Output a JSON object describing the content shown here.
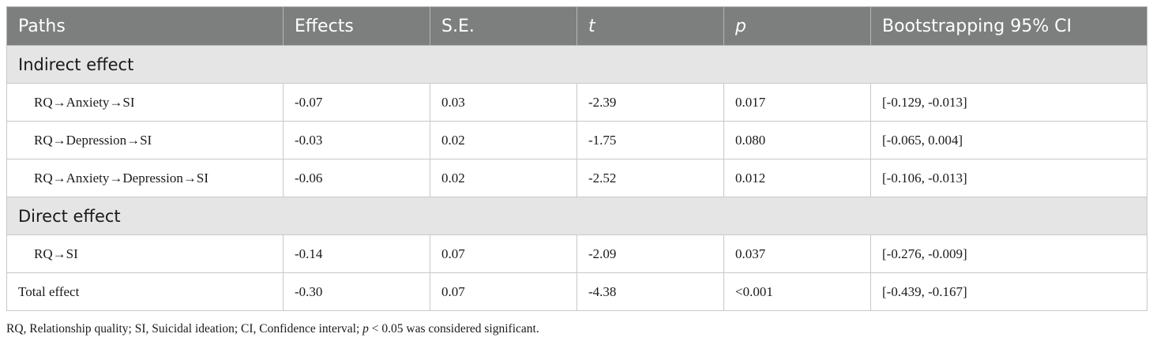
{
  "table": {
    "headers": [
      "Paths",
      "Effects",
      "S.E.",
      "t",
      "p",
      "Bootstrapping 95% CI"
    ],
    "sections": [
      {
        "label": "Indirect effect",
        "rows": [
          [
            "RQ→Anxiety→SI",
            "-0.07",
            "0.03",
            "-2.39",
            "0.017",
            "[-0.129, -0.013]"
          ],
          [
            "RQ→Depression→SI",
            "-0.03",
            "0.02",
            "-1.75",
            "0.080",
            "[-0.065, 0.004]"
          ],
          [
            "RQ→Anxiety→Depression→SI",
            "-0.06",
            "0.02",
            "-2.52",
            "0.012",
            "[-0.106, -0.013]"
          ]
        ]
      },
      {
        "label": "Direct effect",
        "rows": [
          [
            "RQ→SI",
            "-0.14",
            "0.07",
            "-2.09",
            "0.037",
            "[-0.276, -0.009]"
          ]
        ]
      }
    ],
    "total_row": [
      "Total effect",
      "-0.30",
      "0.07",
      "-4.38",
      "<0.001",
      "[-0.439, -0.167]"
    ]
  },
  "note": {
    "prefix": "RQ, Relationship quality; SI, Suicidal ideation; CI, Confidence interval; ",
    "p_symbol": "p",
    "suffix": " < 0.05 was considered significant."
  }
}
